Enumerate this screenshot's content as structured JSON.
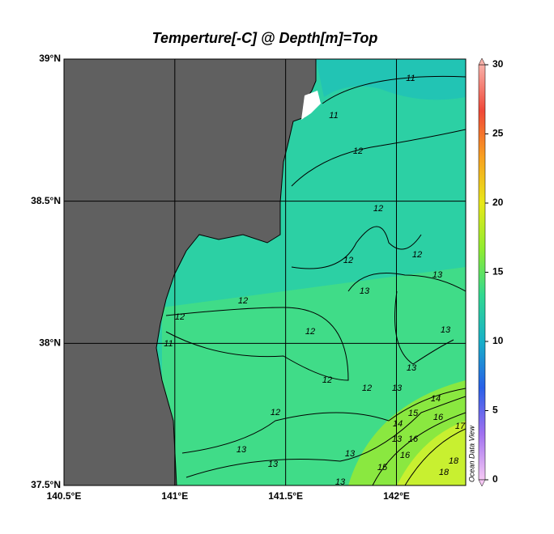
{
  "chart_data": {
    "type": "contour",
    "title": "Temperture[-C] @ Depth[m]=Top",
    "xlim": [
      140.5,
      142.3125
    ],
    "ylim": [
      37.5,
      39
    ],
    "xticks": [
      {
        "value": 140.5,
        "label": "140.5°E"
      },
      {
        "value": 141,
        "label": "141°E"
      },
      {
        "value": 141.5,
        "label": "141.5°E"
      },
      {
        "value": 142,
        "label": "142°E"
      }
    ],
    "yticks": [
      {
        "value": 37.5,
        "label": "37.5°N"
      },
      {
        "value": 38,
        "label": "38°N"
      },
      {
        "value": 38.5,
        "label": "38.5°N"
      },
      {
        "value": 39,
        "label": "39°N"
      }
    ],
    "grid": true,
    "colorbar": {
      "lim": [
        0,
        30
      ],
      "ticks": [
        0,
        5,
        10,
        15,
        20,
        25,
        30
      ],
      "colors": [
        "#f6c8f4",
        "#a070f0",
        "#2860e8",
        "#18b0c8",
        "#30d890",
        "#90ec30",
        "#e8e818",
        "#f8a020",
        "#f04838",
        "#f8b0a8"
      ]
    },
    "watermark": "Ocean Data View",
    "contour_labels": [
      11,
      11,
      12,
      12,
      12,
      13,
      12,
      13,
      12,
      12,
      12,
      11,
      12,
      13,
      12,
      13,
      13,
      12,
      13,
      13,
      13,
      14,
      15,
      16,
      14,
      17,
      13,
      16,
      15,
      16,
      18,
      13,
      18
    ]
  }
}
